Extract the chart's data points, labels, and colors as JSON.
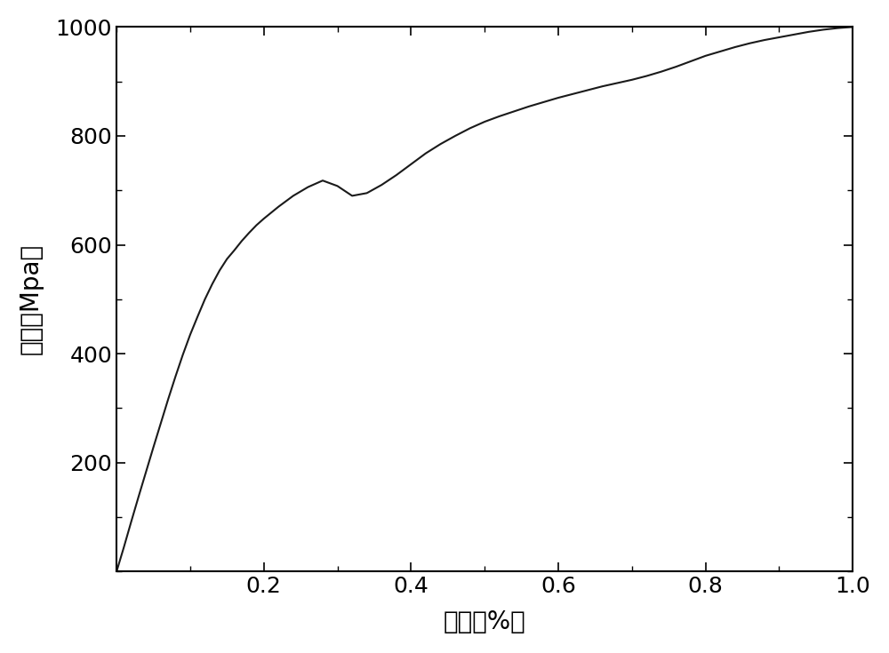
{
  "title": "",
  "xlabel": "应变（%）",
  "ylabel": "应力（Mpa）",
  "xlim": [
    0,
    1.0
  ],
  "ylim": [
    0,
    1000
  ],
  "xticks": [
    0.2,
    0.4,
    0.6,
    0.8,
    1.0
  ],
  "yticks": [
    200,
    400,
    600,
    800,
    1000
  ],
  "line_color": "#1a1a1a",
  "line_width": 1.5,
  "background_color": "#ffffff",
  "curve_x": [
    0.0,
    0.01,
    0.02,
    0.03,
    0.04,
    0.05,
    0.06,
    0.07,
    0.08,
    0.09,
    0.1,
    0.11,
    0.12,
    0.13,
    0.14,
    0.15,
    0.16,
    0.17,
    0.18,
    0.19,
    0.2,
    0.22,
    0.24,
    0.26,
    0.28,
    0.3,
    0.32,
    0.34,
    0.36,
    0.38,
    0.4,
    0.42,
    0.44,
    0.46,
    0.48,
    0.5,
    0.52,
    0.54,
    0.56,
    0.58,
    0.6,
    0.62,
    0.64,
    0.66,
    0.68,
    0.7,
    0.72,
    0.74,
    0.76,
    0.78,
    0.8,
    0.82,
    0.84,
    0.86,
    0.88,
    0.9,
    0.92,
    0.94,
    0.96,
    0.98,
    1.0
  ],
  "curve_y": [
    0,
    45,
    92,
    138,
    183,
    228,
    272,
    316,
    358,
    398,
    435,
    468,
    500,
    528,
    553,
    574,
    590,
    607,
    622,
    636,
    648,
    670,
    690,
    706,
    718,
    708,
    690,
    695,
    710,
    728,
    748,
    768,
    785,
    800,
    814,
    826,
    836,
    845,
    854,
    862,
    870,
    877,
    884,
    891,
    897,
    903,
    910,
    918,
    927,
    937,
    947,
    955,
    963,
    970,
    976,
    981,
    986,
    991,
    995,
    998,
    1000
  ]
}
